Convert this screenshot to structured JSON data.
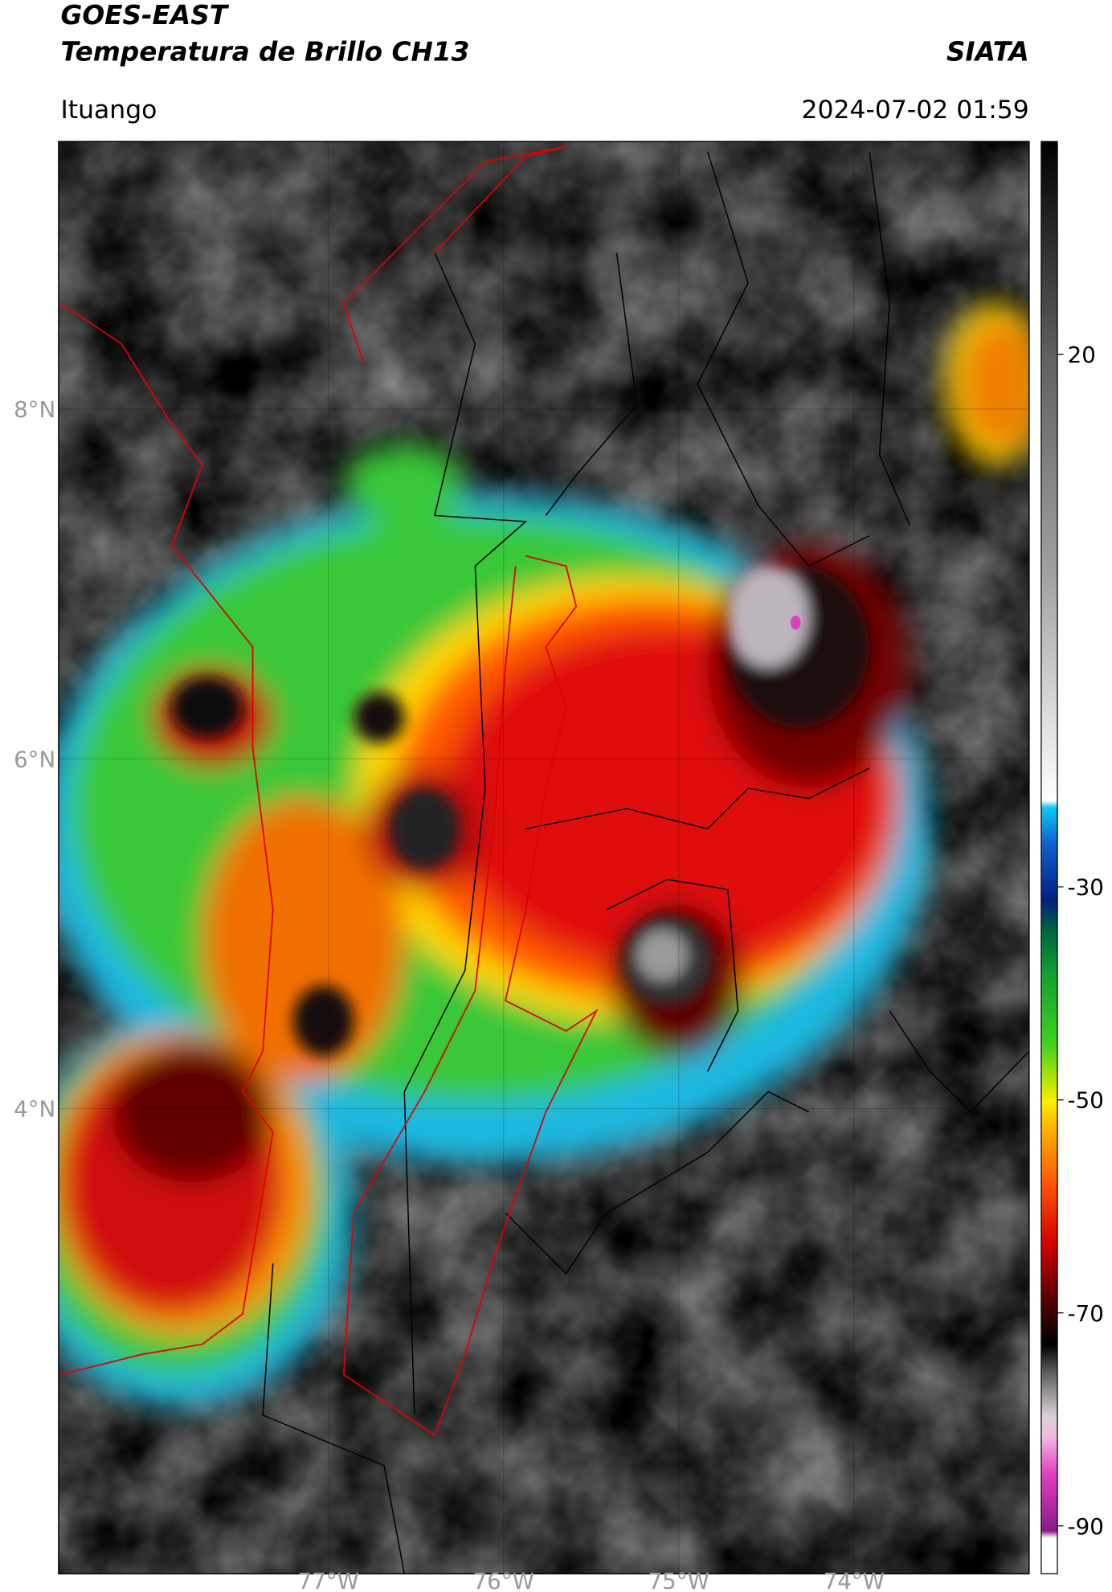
{
  "header": {
    "title": "GOES-EAST",
    "subtitle": "Temperatura de Brillo CH13",
    "source": "SIATA",
    "location": "Ituango",
    "datetime": "2024-07-02 01:59"
  },
  "chart_data": {
    "type": "map",
    "xlim": [
      -78.54,
      -73.0
    ],
    "ylim": [
      1.34,
      9.53
    ],
    "xticks": [
      {
        "value": -77,
        "label": "77°W"
      },
      {
        "value": -76,
        "label": "76°W"
      },
      {
        "value": -75,
        "label": "75°W"
      },
      {
        "value": -74,
        "label": "74°W"
      }
    ],
    "yticks": [
      {
        "value": 4,
        "label": "4°N"
      },
      {
        "value": 6,
        "label": "6°N"
      },
      {
        "value": 8,
        "label": "8°N"
      }
    ],
    "grid": true,
    "colorbar": {
      "lim": [
        -94.5,
        40
      ],
      "ticks": [
        20,
        -30,
        -50,
        -70,
        -90
      ]
    }
  }
}
